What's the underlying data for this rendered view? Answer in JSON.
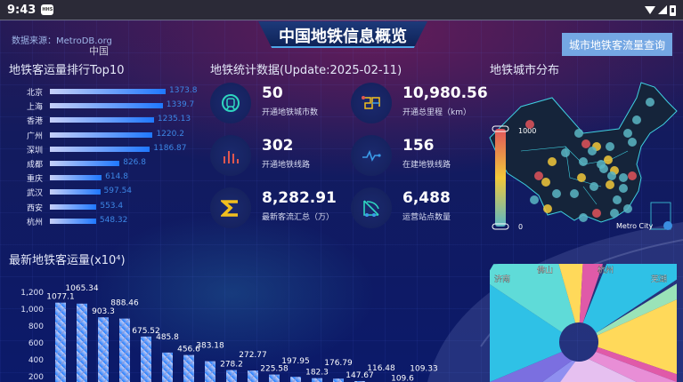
{
  "status_bar": {
    "time": "9:43",
    "badge": "HHS"
  },
  "header": {
    "title": "中国地铁信息概览",
    "source": "数据来源：MetroDB.org",
    "logo_text": "中国",
    "query_button": "城市地铁客流量查询"
  },
  "ranking": {
    "title": "地铁客运量排行Top10",
    "items": [
      {
        "city": "北京",
        "value": "1373.8"
      },
      {
        "city": "上海",
        "value": "1339.7"
      },
      {
        "city": "香港",
        "value": "1235.13"
      },
      {
        "city": "广州",
        "value": "1220.2"
      },
      {
        "city": "深圳",
        "value": "1186.87"
      },
      {
        "city": "成都",
        "value": "826.8"
      },
      {
        "city": "重庆",
        "value": "614.8"
      },
      {
        "city": "武汉",
        "value": "597.54"
      },
      {
        "city": "西安",
        "value": "553.4"
      },
      {
        "city": "杭州",
        "value": "548.32"
      }
    ]
  },
  "stats": {
    "title": "地铁统计数据(Update:2025-02-11)",
    "items": [
      {
        "value": "50",
        "label": "开通地铁城市数",
        "icon": "train-icon",
        "color": "#2fd6c0"
      },
      {
        "value": "10,980.56",
        "label": "开通总里程（km）",
        "icon": "route-map-icon",
        "color": "#e0574f"
      },
      {
        "value": "302",
        "label": "开通地铁线路",
        "icon": "bar-lines-icon",
        "color": "#e0574f"
      },
      {
        "value": "156",
        "label": "在建地铁线路",
        "icon": "pulse-icon",
        "color": "#3a9be8"
      },
      {
        "value": "8,282.91",
        "label": "最新客流汇总（万）",
        "icon": "sigma-icon",
        "color": "#f2c01e"
      },
      {
        "value": "6,488",
        "label": "运营站点数量",
        "icon": "network-icon",
        "color": "#2fd6c0"
      }
    ]
  },
  "map": {
    "title": "地铁城市分布",
    "scale_max": "1000",
    "scale_min": "0",
    "legend": "Metro City",
    "colors": [
      "#e0545a",
      "#f2c83a",
      "#5bb6c4"
    ]
  },
  "chart_data": {
    "type": "bar",
    "title": "最新地铁客运量(x10⁴)",
    "ylim": [
      0,
      1200
    ],
    "yticks": [
      "200",
      "400",
      "600",
      "800",
      "1,000",
      "1,200"
    ],
    "values": [
      1077.1,
      1065.34,
      903.3,
      888.46,
      675.52,
      485.8,
      456.6,
      383.18,
      278.2,
      272.77,
      225.58,
      197.95,
      182.3,
      176.79,
      147.67,
      116.48,
      109.6,
      109.33
    ]
  },
  "rose": {
    "labels": [
      "济南",
      "佛山",
      "杭州",
      "芜湖"
    ]
  }
}
